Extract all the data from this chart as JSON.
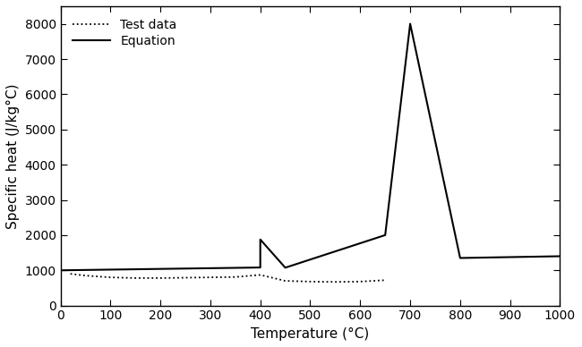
{
  "equation_x": [
    0,
    400,
    400,
    450,
    650,
    700,
    800,
    1000
  ],
  "equation_y": [
    1000,
    1080,
    1875,
    1075,
    2000,
    8000,
    1350,
    1400
  ],
  "test_x": [
    20,
    50,
    100,
    150,
    200,
    250,
    300,
    350,
    400,
    450,
    500,
    550,
    600,
    650
  ],
  "test_y": [
    900,
    850,
    800,
    780,
    780,
    790,
    800,
    810,
    870,
    700,
    680,
    670,
    680,
    720
  ],
  "xlabel": "Temperature (°C)",
  "ylabel": "Specific heat (J/kg°C)",
  "xlim": [
    0,
    1000
  ],
  "ylim": [
    0,
    8500
  ],
  "xticks": [
    0,
    100,
    200,
    300,
    400,
    500,
    600,
    700,
    800,
    900,
    1000
  ],
  "yticks": [
    0,
    1000,
    2000,
    3000,
    4000,
    5000,
    6000,
    7000,
    8000
  ],
  "legend_test": "Test data",
  "legend_eq": "Equation",
  "line_color": "#000000",
  "bg_color": "#ffffff",
  "fig_width": 6.5,
  "fig_height": 3.88,
  "dpi": 100
}
